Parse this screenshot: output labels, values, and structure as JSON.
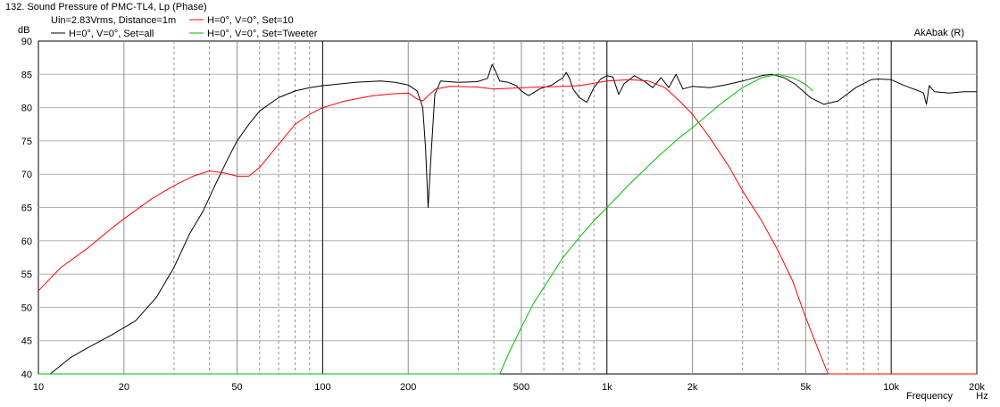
{
  "chart_data": {
    "type": "line",
    "title": "132. Sound Pressure of PMC-TL4, Lp (Phase)",
    "subtitle": "Uin=2.83Vrms, Distance=1m",
    "watermark": "AkAbak (R)",
    "xlabel": "Frequency",
    "xunit": "Hz",
    "yunit": "dB",
    "xscale": "log",
    "xlim": [
      10,
      20000
    ],
    "ylim": [
      40,
      90
    ],
    "grid": true,
    "legend_position": "top-left",
    "yticks": [
      40,
      45,
      50,
      55,
      60,
      65,
      70,
      75,
      80,
      85,
      90
    ],
    "xtick_labels": [
      {
        "value": 10,
        "label": "10"
      },
      {
        "value": 20,
        "label": "20"
      },
      {
        "value": 50,
        "label": "50"
      },
      {
        "value": 100,
        "label": "100"
      },
      {
        "value": 200,
        "label": "200"
      },
      {
        "value": 500,
        "label": "500"
      },
      {
        "value": 1000,
        "label": "1k"
      },
      {
        "value": 2000,
        "label": "2k"
      },
      {
        "value": 5000,
        "label": "5k"
      },
      {
        "value": 10000,
        "label": "10k"
      },
      {
        "value": 20000,
        "label": "20k"
      }
    ],
    "series": [
      {
        "name": "H=0°, V=0°, Set=all",
        "color": "#000000",
        "points": [
          [
            11,
            40
          ],
          [
            13,
            42.5
          ],
          [
            15,
            44
          ],
          [
            18,
            45.8
          ],
          [
            22,
            48
          ],
          [
            26,
            51.5
          ],
          [
            30,
            56
          ],
          [
            34,
            61
          ],
          [
            38,
            64.5
          ],
          [
            42,
            68.5
          ],
          [
            46,
            72
          ],
          [
            50,
            75
          ],
          [
            55,
            77.5
          ],
          [
            60,
            79.5
          ],
          [
            70,
            81.5
          ],
          [
            80,
            82.5
          ],
          [
            90,
            83
          ],
          [
            100,
            83.3
          ],
          [
            130,
            83.8
          ],
          [
            160,
            84
          ],
          [
            180,
            83.8
          ],
          [
            200,
            83.4
          ],
          [
            215,
            82.5
          ],
          [
            225,
            80
          ],
          [
            230,
            74
          ],
          [
            235,
            65
          ],
          [
            240,
            72
          ],
          [
            248,
            82
          ],
          [
            260,
            84
          ],
          [
            300,
            83.8
          ],
          [
            350,
            83.9
          ],
          [
            380,
            84.4
          ],
          [
            395,
            86.5
          ],
          [
            405,
            85.5
          ],
          [
            420,
            84
          ],
          [
            450,
            83.8
          ],
          [
            480,
            83.3
          ],
          [
            500,
            82.5
          ],
          [
            530,
            81.8
          ],
          [
            580,
            82.8
          ],
          [
            640,
            83.4
          ],
          [
            700,
            84.5
          ],
          [
            720,
            85.3
          ],
          [
            740,
            84.3
          ],
          [
            760,
            82.8
          ],
          [
            800,
            81.5
          ],
          [
            850,
            80.8
          ],
          [
            900,
            83
          ],
          [
            950,
            84.3
          ],
          [
            1000,
            84.8
          ],
          [
            1050,
            84.6
          ],
          [
            1100,
            82
          ],
          [
            1150,
            83.6
          ],
          [
            1250,
            84.8
          ],
          [
            1350,
            84
          ],
          [
            1450,
            83
          ],
          [
            1550,
            84.5
          ],
          [
            1650,
            83
          ],
          [
            1750,
            85
          ],
          [
            1850,
            82.8
          ],
          [
            2000,
            83.2
          ],
          [
            2300,
            83
          ],
          [
            2600,
            83.4
          ],
          [
            3000,
            84
          ],
          [
            3500,
            84.8
          ],
          [
            3800,
            85
          ],
          [
            4200,
            84.5
          ],
          [
            4600,
            83.5
          ],
          [
            5200,
            81.5
          ],
          [
            5800,
            80.5
          ],
          [
            6500,
            81
          ],
          [
            7500,
            83
          ],
          [
            8500,
            84.2
          ],
          [
            9000,
            84.3
          ],
          [
            10000,
            84.2
          ],
          [
            11000,
            83.4
          ],
          [
            12500,
            82.5
          ],
          [
            13000,
            82.2
          ],
          [
            13300,
            80.5
          ],
          [
            13600,
            83.3
          ],
          [
            14200,
            82.4
          ],
          [
            16000,
            82.2
          ],
          [
            18000,
            82.4
          ],
          [
            20000,
            82.4
          ]
        ]
      },
      {
        "name": "H=0°, V=0°, Set=10",
        "color": "#ff0000",
        "points": [
          [
            10,
            52.5
          ],
          [
            12,
            56
          ],
          [
            15,
            59
          ],
          [
            18,
            61.8
          ],
          [
            20,
            63.3
          ],
          [
            25,
            66.3
          ],
          [
            30,
            68.3
          ],
          [
            35,
            69.7
          ],
          [
            40,
            70.5
          ],
          [
            45,
            70.2
          ],
          [
            50,
            69.7
          ],
          [
            55,
            69.7
          ],
          [
            60,
            71
          ],
          [
            70,
            74.5
          ],
          [
            80,
            77.5
          ],
          [
            90,
            79
          ],
          [
            100,
            80
          ],
          [
            120,
            81
          ],
          [
            150,
            81.8
          ],
          [
            180,
            82.1
          ],
          [
            200,
            82.2
          ],
          [
            215,
            81.3
          ],
          [
            225,
            81
          ],
          [
            235,
            81.8
          ],
          [
            250,
            82.8
          ],
          [
            280,
            83.2
          ],
          [
            350,
            83.1
          ],
          [
            400,
            82.8
          ],
          [
            500,
            83
          ],
          [
            700,
            83.2
          ],
          [
            800,
            83.3
          ],
          [
            1000,
            84
          ],
          [
            1200,
            84.2
          ],
          [
            1400,
            84
          ],
          [
            1600,
            83
          ],
          [
            1800,
            81
          ],
          [
            2000,
            79
          ],
          [
            2300,
            75.5
          ],
          [
            2700,
            71
          ],
          [
            3000,
            67.5
          ],
          [
            3500,
            63
          ],
          [
            4000,
            58.5
          ],
          [
            4500,
            54
          ],
          [
            5000,
            48.5
          ],
          [
            5500,
            44
          ],
          [
            6000,
            40
          ],
          [
            20000,
            40
          ]
        ]
      },
      {
        "name": "H=0°, V=0°, Set=Tweeter",
        "color": "#00c000",
        "points": [
          [
            10,
            40
          ],
          [
            420,
            40
          ],
          [
            450,
            43
          ],
          [
            500,
            47
          ],
          [
            550,
            50.5
          ],
          [
            600,
            53
          ],
          [
            700,
            57.5
          ],
          [
            800,
            60.5
          ],
          [
            900,
            63
          ],
          [
            1000,
            65
          ],
          [
            1200,
            68.5
          ],
          [
            1500,
            72.5
          ],
          [
            1800,
            75.5
          ],
          [
            2000,
            77
          ],
          [
            2500,
            80.5
          ],
          [
            3000,
            83
          ],
          [
            3500,
            84.5
          ],
          [
            4000,
            85
          ],
          [
            4500,
            84.5
          ],
          [
            5000,
            83.5
          ],
          [
            5300,
            82.5
          ]
        ]
      }
    ]
  }
}
